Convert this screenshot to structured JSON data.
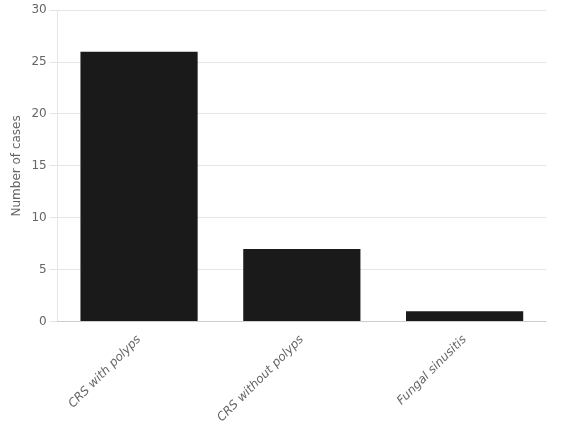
{
  "chart_data": {
    "type": "bar",
    "categories": [
      "CRS with polyps",
      "CRS without polyps",
      "Fungal sinusitis"
    ],
    "values": [
      26,
      7,
      1
    ],
    "color": "#1a1a1a",
    "ylabel": "Number of cases",
    "ylim": [
      0,
      30
    ],
    "yticks": [
      0,
      5,
      10,
      15,
      20,
      25,
      30
    ],
    "grid": true
  }
}
